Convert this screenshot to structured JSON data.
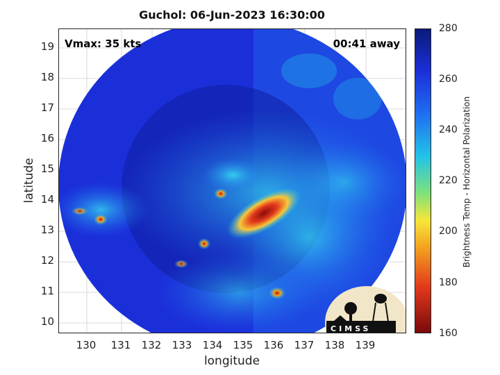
{
  "title": "Guchol: 06-Jun-2023 16:30:00",
  "vmax_label": "Vmax: 35 kts",
  "away_label": "00:41 away",
  "xlabel": "longitude",
  "ylabel": "latitude",
  "x_ticks": [
    "130",
    "131",
    "132",
    "133",
    "134",
    "135",
    "136",
    "137",
    "138",
    "139"
  ],
  "y_ticks": [
    "19",
    "18",
    "17",
    "16",
    "15",
    "14",
    "13",
    "12",
    "11",
    "10"
  ],
  "colorbar": {
    "label": "Brightness Temp - Horizontal Polarization",
    "ticks": [
      "280",
      "260",
      "240",
      "220",
      "200",
      "180",
      "160"
    ],
    "range": [
      160,
      280
    ]
  },
  "logo_text": "CIMSS",
  "colors": {
    "cold_blue": "#1b2fd9",
    "warm_cyan": "#22c3e8",
    "hot_red": "#e2391a"
  }
}
